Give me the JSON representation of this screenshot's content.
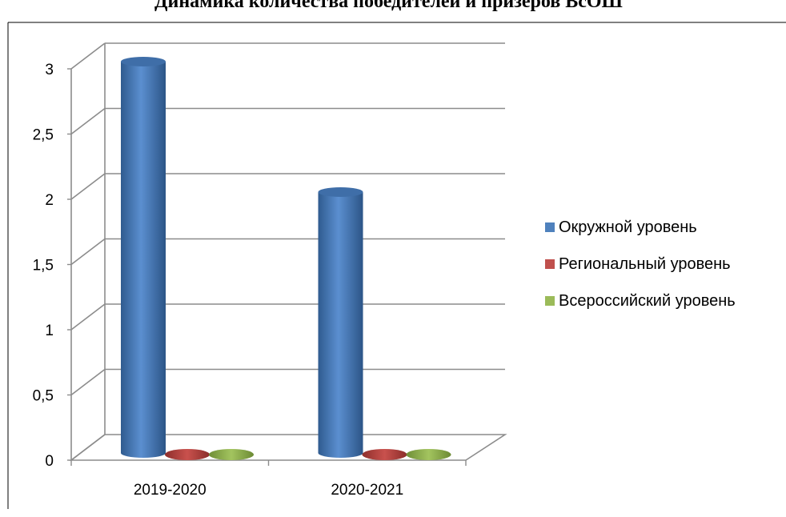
{
  "chart_data": {
    "type": "bar",
    "title": "Динамика количества победителей и призеров ВсОШ",
    "categories": [
      "2019-2020",
      "2020-2021"
    ],
    "series": [
      {
        "name": "Окружной уровень",
        "values": [
          3,
          2
        ],
        "color": "#4F81BD"
      },
      {
        "name": "Региональный уровень",
        "values": [
          0,
          0
        ],
        "color": "#C0504D"
      },
      {
        "name": "Всероссийский уровень",
        "values": [
          0,
          0
        ],
        "color": "#9BBB59"
      }
    ],
    "y_ticks": [
      "0",
      "0,5",
      "1",
      "1,5",
      "2",
      "2,5",
      "3"
    ],
    "ylim": [
      0,
      3
    ],
    "grid": true,
    "legend_position": "right",
    "style": "3d-cylinder"
  }
}
